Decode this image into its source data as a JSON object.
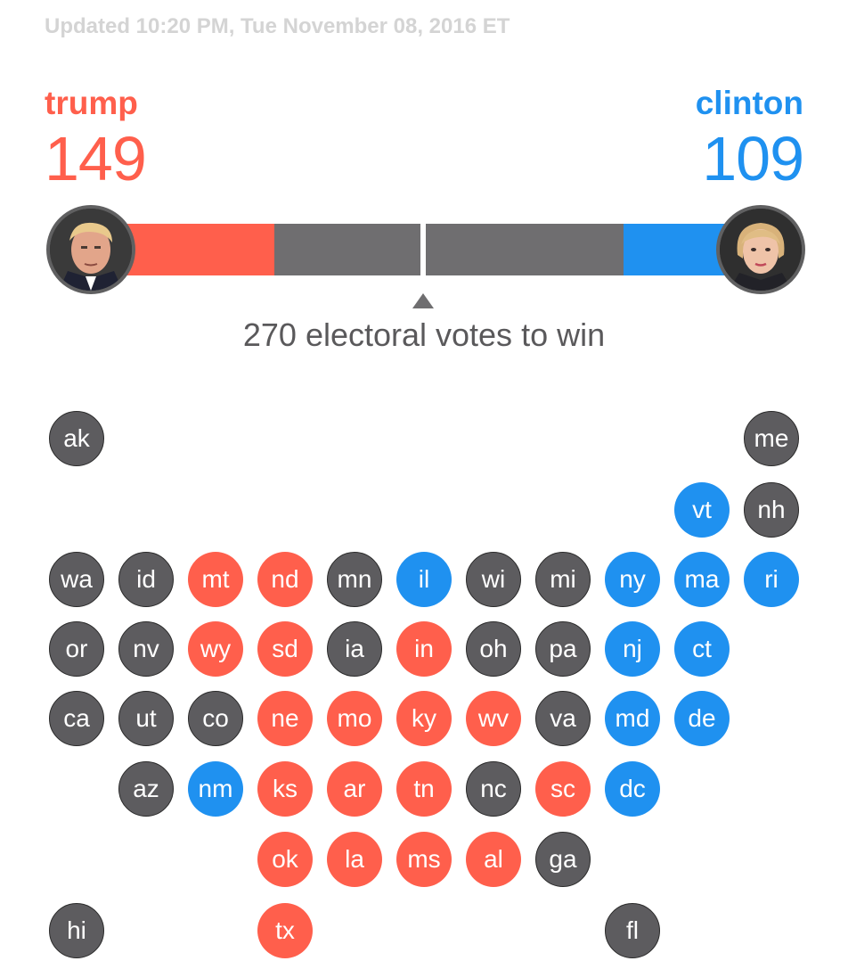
{
  "header": {
    "updated": "Updated 10:20 PM, Tue November 08, 2016 ET"
  },
  "candidates": {
    "trump": {
      "name": "trump",
      "votes": "149"
    },
    "clinton": {
      "name": "clinton",
      "votes": "109"
    }
  },
  "colors": {
    "republican": "#ff5f4c",
    "democrat": "#1f91f0",
    "undecided": "#5d5c5f"
  },
  "bar": {
    "total_votes": 538,
    "trump_votes": 149,
    "clinton_votes": 109,
    "threshold_label": "270 electoral votes to win"
  },
  "states": {
    "ak": "ak",
    "me": "me",
    "vt": "vt",
    "nh": "nh",
    "wa": "wa",
    "id": "id",
    "mt": "mt",
    "nd": "nd",
    "mn": "mn",
    "il": "il",
    "wi": "wi",
    "mi": "mi",
    "ny": "ny",
    "ma": "ma",
    "ri": "ri",
    "or": "or",
    "nv": "nv",
    "wy": "wy",
    "sd": "sd",
    "ia": "ia",
    "in": "in",
    "oh": "oh",
    "pa": "pa",
    "nj": "nj",
    "ct": "ct",
    "ca": "ca",
    "ut": "ut",
    "co": "co",
    "ne": "ne",
    "mo": "mo",
    "ky": "ky",
    "wv": "wv",
    "va": "va",
    "md": "md",
    "de": "de",
    "az": "az",
    "nm": "nm",
    "ks": "ks",
    "ar": "ar",
    "tn": "tn",
    "nc": "nc",
    "sc": "sc",
    "dc": "dc",
    "ok": "ok",
    "la": "la",
    "ms": "ms",
    "al": "al",
    "ga": "ga",
    "hi": "hi",
    "tx": "tx",
    "fl": "fl"
  }
}
